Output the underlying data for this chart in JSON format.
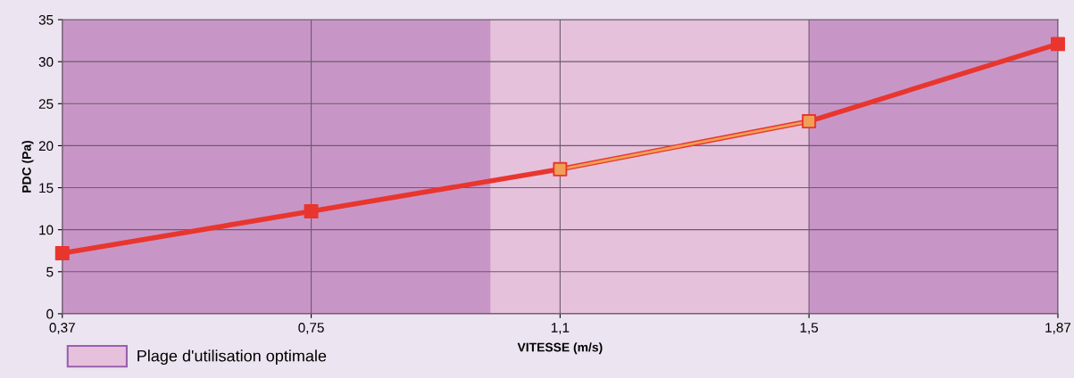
{
  "chart_data": {
    "type": "line",
    "xlabel": "VITESSE (m/s)",
    "ylabel": "PDC (Pa)",
    "categories": [
      "0,37",
      "0,75",
      "1,1",
      "1,5",
      "1,87"
    ],
    "series": [
      {
        "color": "#e8362f",
        "values": [
          7.2,
          12.2,
          17.2,
          22.9,
          32.1
        ]
      },
      {
        "color": "#f0a055",
        "values": [
          null,
          null,
          17.2,
          22.9,
          null
        ]
      }
    ],
    "ylim": [
      0,
      35
    ],
    "yticks": [
      0,
      5,
      10,
      15,
      20,
      25,
      30,
      35
    ],
    "annotations": [
      "Plage d'utilisation optimale"
    ],
    "marker": "square",
    "line_style": "solid",
    "grid": true
  }
}
